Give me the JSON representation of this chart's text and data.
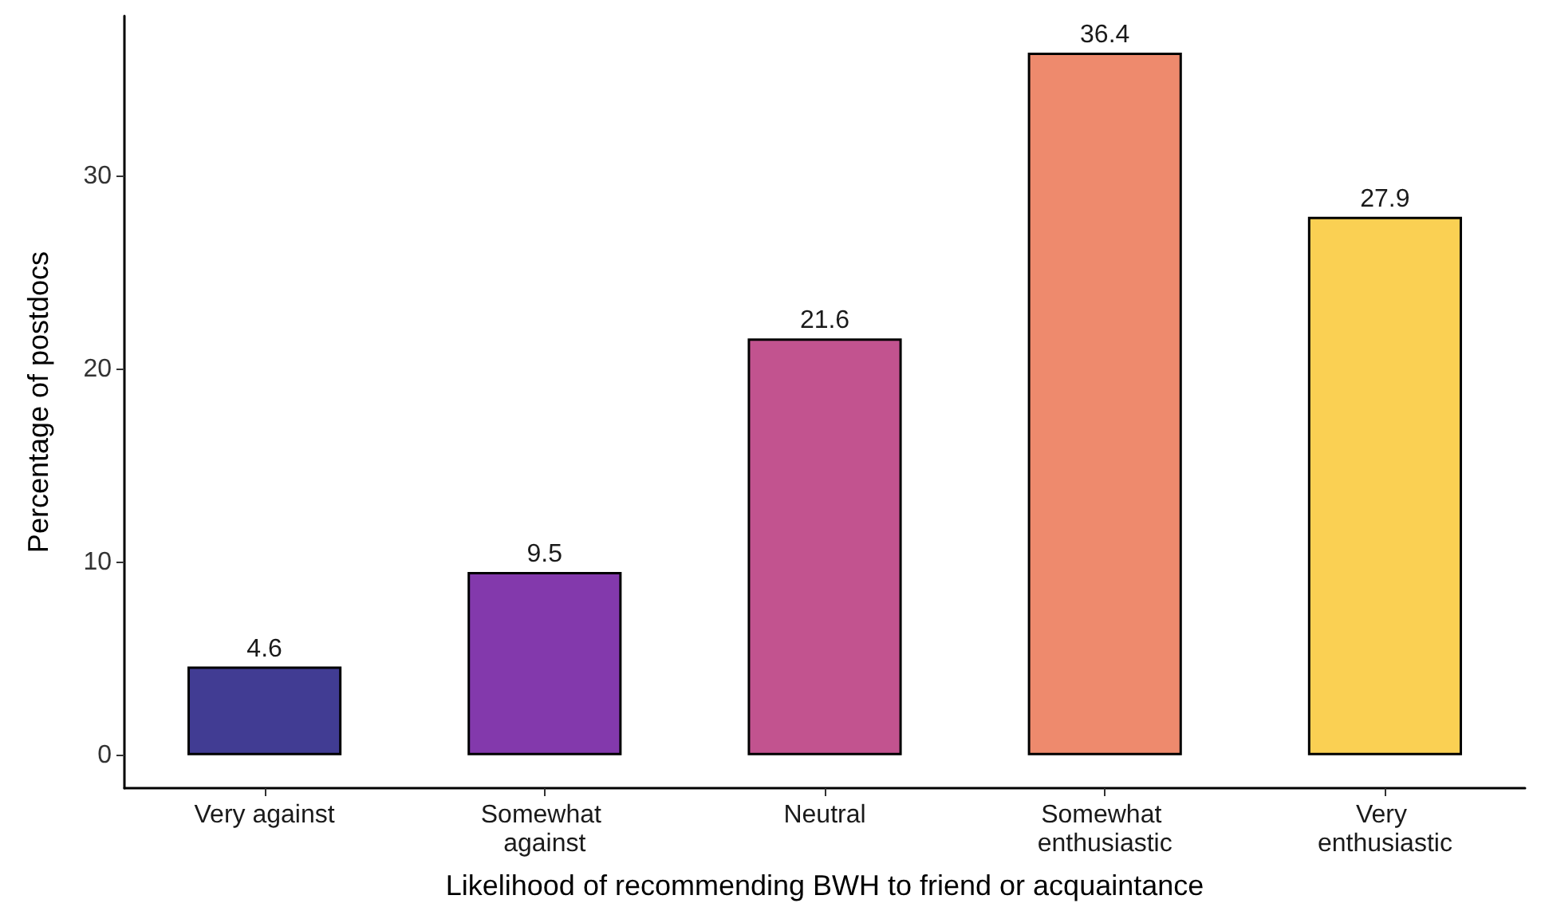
{
  "chart_data": {
    "type": "bar",
    "categories": [
      "Very against",
      "Somewhat against",
      "Neutral",
      "Somewhat enthusiastic",
      "Very enthusiastic"
    ],
    "values": [
      4.6,
      9.5,
      21.6,
      36.4,
      27.9
    ],
    "colors": [
      "#413c93",
      "#8339ac",
      "#c2538f",
      "#ee8a6d",
      "#fad053"
    ],
    "xlabel": "Likelihood of recommending BWH to friend or acquaintance",
    "ylabel": "Percentage of postdocs",
    "ylim": [
      -1.7,
      38.3
    ],
    "yticks": [
      0,
      10,
      20,
      30
    ],
    "data_labels": true
  }
}
